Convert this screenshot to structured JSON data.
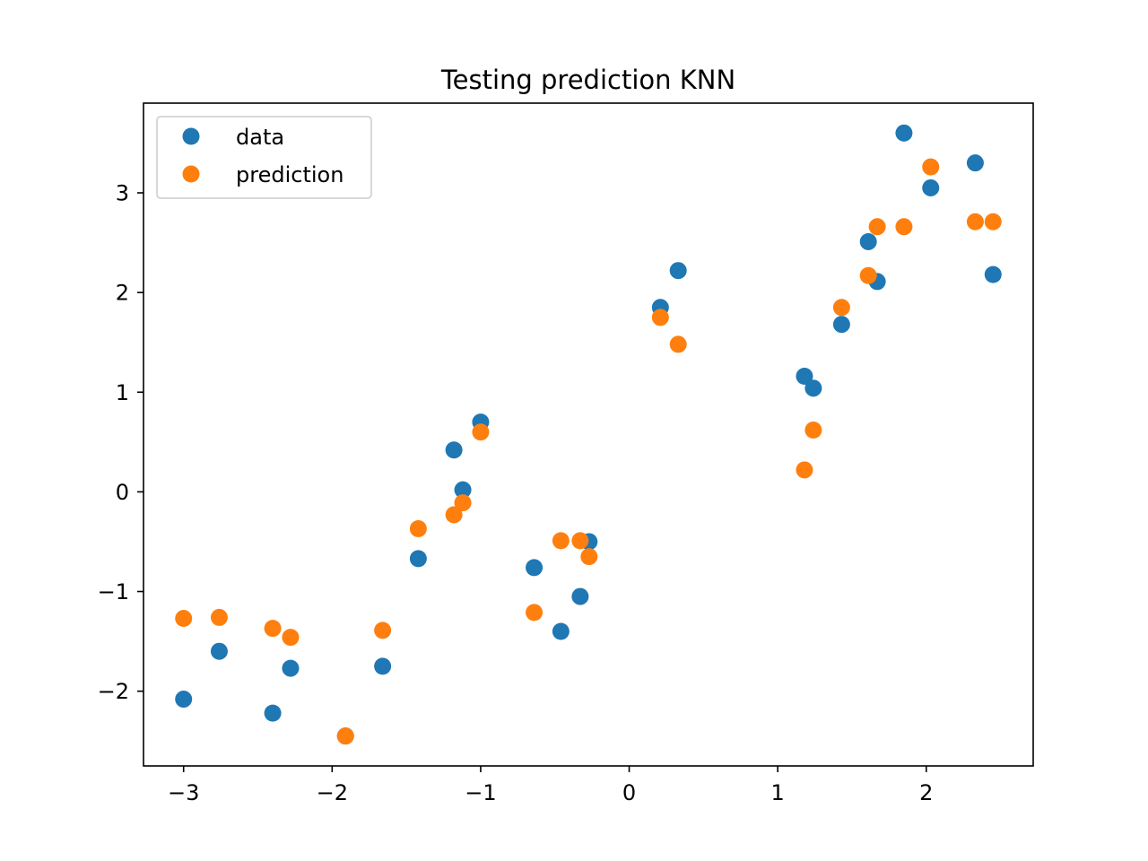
{
  "chart_data": {
    "type": "scatter",
    "title": "Testing prediction KNN",
    "xlabel": "",
    "ylabel": "",
    "xlim": [
      -3.27,
      2.72
    ],
    "ylim": [
      -2.75,
      3.9
    ],
    "x_ticks": [
      -3,
      -2,
      -1,
      0,
      1,
      2
    ],
    "x_tick_labels": [
      "−3",
      "−2",
      "−1",
      "0",
      "1",
      "2"
    ],
    "y_ticks": [
      -2,
      -1,
      0,
      1,
      2,
      3
    ],
    "y_tick_labels": [
      "−2",
      "−1",
      "0",
      "1",
      "2",
      "3"
    ],
    "grid": false,
    "legend_position": "upper-left",
    "series": [
      {
        "name": "data",
        "color": "#1f77b4",
        "x": [
          -3.0,
          -2.76,
          -2.4,
          -2.28,
          -1.91,
          -1.66,
          -1.42,
          -1.18,
          -1.12,
          -1.0,
          -0.64,
          -0.46,
          -0.33,
          -0.27,
          0.21,
          0.33,
          1.18,
          1.24,
          1.43,
          1.61,
          1.67,
          1.85,
          2.03,
          2.33,
          2.45
        ],
        "y": [
          -2.08,
          -1.6,
          -2.22,
          -1.77,
          -2.45,
          -1.75,
          -0.67,
          0.42,
          0.02,
          0.7,
          -0.76,
          -1.4,
          -1.05,
          -0.5,
          1.85,
          2.22,
          1.16,
          1.04,
          1.68,
          2.51,
          2.11,
          3.6,
          3.05,
          3.3,
          2.18
        ]
      },
      {
        "name": "prediction",
        "color": "#ff7f0e",
        "x": [
          -3.0,
          -2.76,
          -2.4,
          -2.28,
          -1.91,
          -1.66,
          -1.42,
          -1.18,
          -1.12,
          -1.0,
          -0.64,
          -0.46,
          -0.33,
          -0.27,
          0.21,
          0.33,
          1.18,
          1.24,
          1.43,
          1.61,
          1.67,
          1.85,
          2.03,
          2.33,
          2.45
        ],
        "y": [
          -1.27,
          -1.26,
          -1.37,
          -1.46,
          -2.45,
          -1.39,
          -0.37,
          -0.23,
          -0.11,
          0.6,
          -1.21,
          -0.49,
          -0.49,
          -0.65,
          1.75,
          1.48,
          0.22,
          0.62,
          1.85,
          2.17,
          2.66,
          2.66,
          3.26,
          2.71,
          2.71
        ]
      }
    ]
  }
}
